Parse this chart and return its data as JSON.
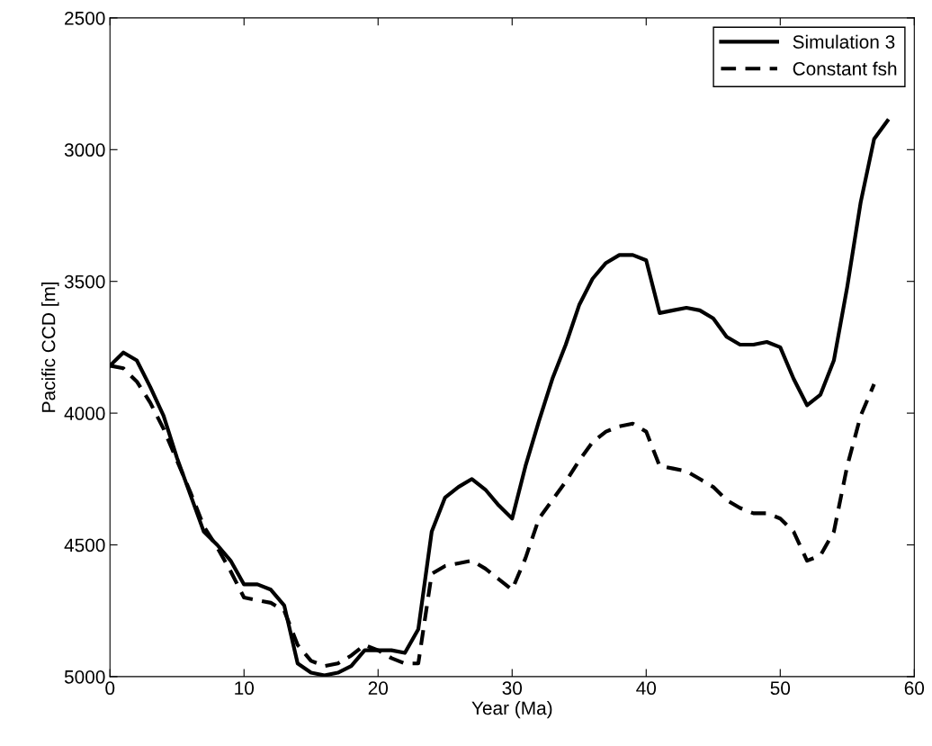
{
  "chart_data": {
    "type": "line",
    "xlabel": "Year (Ma)",
    "ylabel": "Pacific CCD [m]",
    "x": [
      0,
      1,
      2,
      3,
      4,
      5,
      6,
      7,
      8,
      9,
      10,
      11,
      12,
      13,
      14,
      15,
      16,
      17,
      18,
      19,
      20,
      21,
      22,
      23,
      24,
      25,
      26,
      27,
      28,
      29,
      30,
      31,
      32,
      33,
      34,
      35,
      36,
      37,
      38,
      39,
      40,
      41,
      42,
      43,
      44,
      45,
      46,
      47,
      48,
      49,
      50,
      51,
      52,
      53,
      54,
      55,
      56,
      57,
      58
    ],
    "series": [
      {
        "name": "Simulation 3",
        "color": "#000000",
        "line_style": "solid",
        "values": [
          3820,
          3770,
          3800,
          3900,
          4010,
          4170,
          4310,
          4450,
          4500,
          4560,
          4650,
          4650,
          4670,
          4730,
          4950,
          4985,
          4995,
          4985,
          4960,
          4900,
          4900,
          4900,
          4910,
          4820,
          4450,
          4320,
          4280,
          4250,
          4290,
          4350,
          4400,
          4200,
          4030,
          3870,
          3740,
          3590,
          3490,
          3430,
          3400,
          3400,
          3420,
          3620,
          3610,
          3600,
          3610,
          3640,
          3710,
          3740,
          3740,
          3730,
          3750,
          3870,
          3970,
          3930,
          3800,
          3520,
          3200,
          2960,
          2890
        ]
      },
      {
        "name": "Constant fsh",
        "color": "#000000",
        "line_style": "dashed",
        "values": [
          3820,
          3830,
          3880,
          3960,
          4060,
          4180,
          4300,
          4430,
          4510,
          4600,
          4700,
          4710,
          4720,
          4750,
          4880,
          4940,
          4960,
          4950,
          4920,
          4880,
          4900,
          4930,
          4950,
          4950,
          4610,
          4580,
          4570,
          4560,
          4590,
          4630,
          4670,
          4550,
          4400,
          4330,
          4260,
          4180,
          4110,
          4070,
          4050,
          4040,
          4070,
          4200,
          4210,
          4220,
          4250,
          4280,
          4330,
          4360,
          4380,
          4380,
          4400,
          4450,
          4560,
          4540,
          4450,
          4200,
          4010,
          3890,
          null
        ]
      }
    ],
    "xlim": [
      0,
      60
    ],
    "xticks": [
      0,
      10,
      20,
      30,
      40,
      50,
      60
    ],
    "ylim": [
      5000,
      2500
    ],
    "yticks": [
      2500,
      3000,
      3500,
      4000,
      4500,
      5000
    ],
    "grid": false,
    "legend": "top right",
    "marker": "none"
  }
}
